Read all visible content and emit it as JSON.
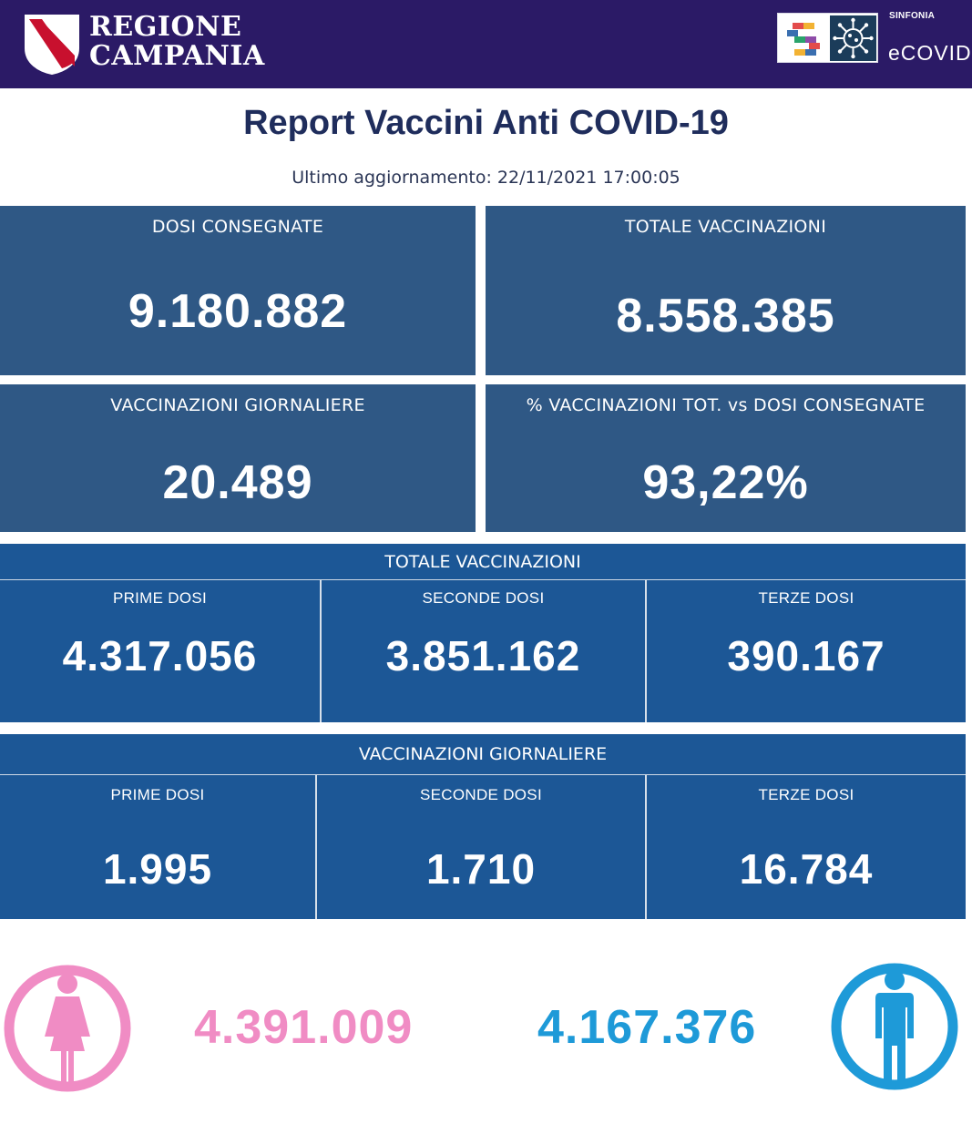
{
  "header": {
    "brand_line1": "REGIONE",
    "brand_line2": "CAMPANIA",
    "sinfonia": "SINFONIA",
    "ecovid": "eCOVID",
    "colors": {
      "bar": "#2b1a66",
      "shield_red": "#c8102e"
    }
  },
  "report": {
    "title": "Report Vaccini Anti COVID-19",
    "updated": "Ultimo aggiornamento: 22/11/2021  17:00:05"
  },
  "summary": {
    "dosi_label": "DOSI  CONSEGNATE",
    "dosi_value": "9.180.882",
    "totale_label": "TOTALE VACCINAZIONI",
    "totale_value": "8.558.385",
    "giornaliere_label": "VACCINAZIONI GIORNALIERE",
    "giornaliere_value": "20.489",
    "percent_label": "% VACCINAZIONI TOT. vs DOSI CONSEGNATE",
    "percent_value": "93,22%"
  },
  "totale": {
    "heading": "TOTALE VACCINAZIONI",
    "prime_label": "PRIME DOSI",
    "prime_value": "4.317.056",
    "seconde_label": "SECONDE DOSI",
    "seconde_value": "3.851.162",
    "terze_label": "TERZE DOSI",
    "terze_value": "390.167"
  },
  "giornaliere": {
    "heading": "VACCINAZIONI GIORNALIERE",
    "prime_label": "PRIME DOSI",
    "prime_value": "1.995",
    "seconde_label": "SECONDE DOSI",
    "seconde_value": "1.710",
    "terze_label": "TERZE DOSI",
    "terze_value": "16.784"
  },
  "gender": {
    "female_value": "4.391.009",
    "male_value": "4.167.376",
    "female_color": "#f08cc4",
    "male_color": "#1e9ad8",
    "female_icon": "female-person-icon",
    "male_icon": "male-person-icon"
  }
}
